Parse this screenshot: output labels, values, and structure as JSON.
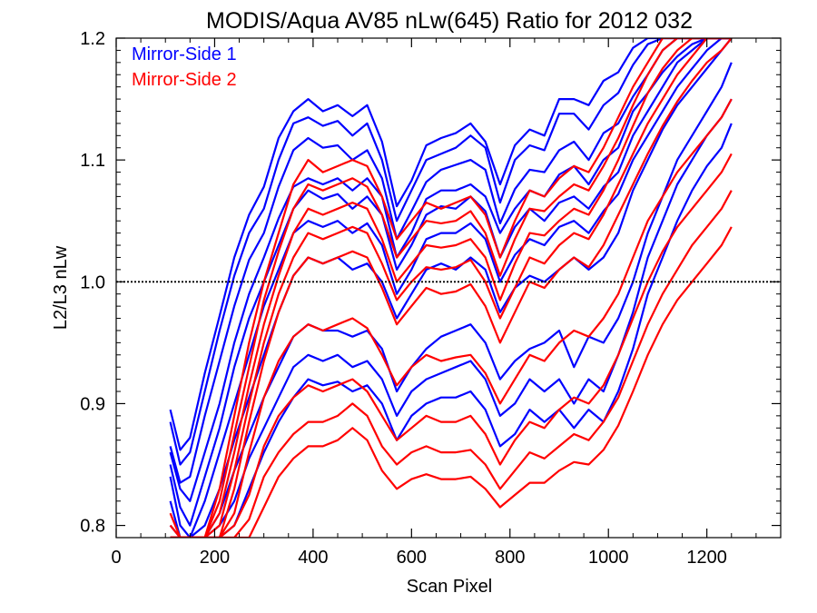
{
  "chart_data": {
    "type": "line",
    "title": "MODIS/Aqua AV85 nLw(645) Ratio for 2012 032",
    "xlabel": "Scan Pixel",
    "ylabel": "L2/L3 nLw",
    "xlim": [
      0,
      1350
    ],
    "ylim": [
      0.79,
      1.2
    ],
    "xticks": [
      0,
      200,
      400,
      600,
      800,
      1000,
      1200
    ],
    "xtick_labels": [
      "0",
      "200",
      "400",
      "600",
      "800",
      "1000",
      "1200"
    ],
    "yticks": [
      0.8,
      0.9,
      1.0,
      1.1,
      1.2
    ],
    "ytick_labels": [
      "0.8",
      "0.9",
      "1.0",
      "1.1",
      "1.2"
    ],
    "reference_line": {
      "y": 1.0,
      "style": "dotted"
    },
    "legend": [
      {
        "label": "Mirror-Side 1",
        "color": "#0000ff"
      },
      {
        "label": "Mirror-Side 2",
        "color": "#ff0000"
      }
    ],
    "legend_position": "top-left",
    "x": [
      110,
      130,
      150,
      180,
      210,
      240,
      270,
      300,
      330,
      360,
      390,
      420,
      450,
      480,
      510,
      540,
      570,
      600,
      630,
      660,
      690,
      720,
      750,
      780,
      810,
      840,
      870,
      900,
      930,
      960,
      990,
      1020,
      1050,
      1080,
      1110,
      1140,
      1170,
      1200,
      1230,
      1250
    ],
    "series": [
      {
        "group": "Mirror-Side 1",
        "color": "#0000ff",
        "values": [
          0.895,
          0.862,
          0.872,
          0.925,
          0.972,
          1.02,
          1.055,
          1.078,
          1.118,
          1.14,
          1.15,
          1.14,
          1.145,
          1.136,
          1.145,
          1.115,
          1.062,
          1.083,
          1.112,
          1.118,
          1.122,
          1.13,
          1.115,
          1.08,
          1.112,
          1.125,
          1.12,
          1.15,
          1.15,
          1.145,
          1.165,
          1.172,
          1.192,
          1.2,
          1.2,
          1.2,
          1.2,
          1.2,
          1.2,
          1.2
        ]
      },
      {
        "group": "Mirror-Side 1",
        "color": "#0000ff",
        "values": [
          0.885,
          0.85,
          0.86,
          0.91,
          0.96,
          1.005,
          1.04,
          1.06,
          1.1,
          1.13,
          1.135,
          1.128,
          1.132,
          1.12,
          1.13,
          1.1,
          1.05,
          1.075,
          1.1,
          1.105,
          1.11,
          1.12,
          1.11,
          1.065,
          1.1,
          1.112,
          1.108,
          1.138,
          1.138,
          1.125,
          1.145,
          1.155,
          1.178,
          1.195,
          1.2,
          1.2,
          1.2,
          1.2,
          1.2,
          1.2
        ]
      },
      {
        "group": "Mirror-Side 1",
        "color": "#0000ff",
        "values": [
          0.865,
          0.835,
          0.84,
          0.89,
          0.935,
          0.98,
          1.018,
          1.04,
          1.078,
          1.108,
          1.118,
          1.11,
          1.112,
          1.1,
          1.108,
          1.085,
          1.035,
          1.058,
          1.082,
          1.092,
          1.096,
          1.1,
          1.092,
          1.048,
          1.076,
          1.092,
          1.09,
          1.108,
          1.115,
          1.1,
          1.122,
          1.13,
          1.152,
          1.17,
          1.19,
          1.2,
          1.2,
          1.2,
          1.2,
          1.2
        ]
      },
      {
        "group": "Mirror-Side 1",
        "color": "#0000ff",
        "values": [
          0.86,
          0.83,
          0.82,
          0.86,
          0.9,
          0.95,
          0.99,
          1.02,
          1.052,
          1.078,
          1.085,
          1.08,
          1.085,
          1.075,
          1.085,
          1.07,
          1.02,
          1.04,
          1.068,
          1.075,
          1.075,
          1.08,
          1.07,
          1.04,
          1.06,
          1.075,
          1.07,
          1.088,
          1.095,
          1.08,
          1.1,
          1.11,
          1.14,
          1.155,
          1.172,
          1.185,
          1.195,
          1.2,
          1.2,
          1.2
        ]
      },
      {
        "group": "Mirror-Side 1",
        "color": "#0000ff",
        "values": [
          0.85,
          0.815,
          0.8,
          0.84,
          0.88,
          0.93,
          0.97,
          1.0,
          1.03,
          1.06,
          1.075,
          1.068,
          1.072,
          1.06,
          1.07,
          1.055,
          1.01,
          1.03,
          1.055,
          1.062,
          1.06,
          1.07,
          1.058,
          1.02,
          1.045,
          1.06,
          1.05,
          1.065,
          1.07,
          1.06,
          1.078,
          1.09,
          1.12,
          1.14,
          1.16,
          1.18,
          1.19,
          1.2,
          1.2,
          1.2
        ]
      },
      {
        "group": "Mirror-Side 1",
        "color": "#0000ff",
        "values": [
          0.84,
          0.8,
          0.79,
          0.82,
          0.86,
          0.9,
          0.94,
          0.98,
          1.01,
          1.04,
          1.05,
          1.045,
          1.05,
          1.04,
          1.048,
          1.03,
          0.99,
          1.01,
          1.035,
          1.04,
          1.04,
          1.048,
          1.035,
          1.0,
          1.022,
          1.035,
          1.03,
          1.045,
          1.05,
          1.04,
          1.058,
          1.072,
          1.1,
          1.12,
          1.14,
          1.16,
          1.175,
          1.19,
          1.2,
          1.2
        ]
      },
      {
        "group": "Mirror-Side 1",
        "color": "#0000ff",
        "values": [
          0.82,
          0.79,
          0.79,
          0.8,
          0.83,
          0.87,
          0.905,
          0.94,
          0.975,
          1.005,
          1.02,
          1.015,
          1.02,
          1.01,
          1.015,
          1.0,
          0.97,
          0.99,
          1.01,
          1.015,
          1.01,
          1.02,
          1.01,
          0.975,
          0.995,
          1.005,
          1.0,
          1.01,
          1.02,
          1.01,
          1.02,
          1.04,
          1.075,
          1.1,
          1.125,
          1.145,
          1.16,
          1.175,
          1.19,
          1.2
        ]
      },
      {
        "group": "Mirror-Side 1",
        "color": "#0000ff",
        "values": [
          0.8,
          0.79,
          0.79,
          0.79,
          0.81,
          0.845,
          0.875,
          0.905,
          0.93,
          0.955,
          0.965,
          0.96,
          0.96,
          0.955,
          0.96,
          0.945,
          0.91,
          0.93,
          0.945,
          0.955,
          0.96,
          0.965,
          0.95,
          0.92,
          0.935,
          0.945,
          0.95,
          0.96,
          0.93,
          0.955,
          0.95,
          0.97,
          1.0,
          1.04,
          1.07,
          1.1,
          1.12,
          1.14,
          1.16,
          1.18
        ]
      },
      {
        "group": "Mirror-Side 1",
        "color": "#0000ff",
        "values": [
          0.79,
          0.79,
          0.79,
          0.79,
          0.8,
          0.82,
          0.855,
          0.88,
          0.905,
          0.93,
          0.94,
          0.935,
          0.94,
          0.93,
          0.935,
          0.92,
          0.89,
          0.91,
          0.92,
          0.925,
          0.93,
          0.935,
          0.92,
          0.89,
          0.9,
          0.92,
          0.91,
          0.92,
          0.9,
          0.92,
          0.91,
          0.94,
          0.975,
          1.02,
          1.05,
          1.08,
          1.1,
          1.12,
          1.135,
          1.15
        ]
      },
      {
        "group": "Mirror-Side 1",
        "color": "#0000ff",
        "values": [
          0.79,
          0.79,
          0.79,
          0.79,
          0.79,
          0.8,
          0.83,
          0.86,
          0.885,
          0.905,
          0.92,
          0.915,
          0.918,
          0.91,
          0.915,
          0.9,
          0.87,
          0.89,
          0.9,
          0.905,
          0.905,
          0.91,
          0.895,
          0.865,
          0.875,
          0.895,
          0.885,
          0.895,
          0.88,
          0.895,
          0.885,
          0.91,
          0.945,
          0.99,
          1.02,
          1.05,
          1.075,
          1.095,
          1.11,
          1.13
        ]
      },
      {
        "group": "Mirror-Side 2",
        "color": "#ff0000",
        "values": [
          0.81,
          0.79,
          0.79,
          0.79,
          0.83,
          0.89,
          0.95,
          1.0,
          1.04,
          1.08,
          1.1,
          1.09,
          1.095,
          1.1,
          1.095,
          1.07,
          1.035,
          1.05,
          1.065,
          1.06,
          1.065,
          1.07,
          1.055,
          1.02,
          1.05,
          1.075,
          1.07,
          1.085,
          1.095,
          1.09,
          1.11,
          1.135,
          1.16,
          1.18,
          1.2,
          1.2,
          1.2,
          1.2,
          1.2,
          1.2
        ]
      },
      {
        "group": "Mirror-Side 2",
        "color": "#ff0000",
        "values": [
          0.8,
          0.79,
          0.79,
          0.79,
          0.82,
          0.875,
          0.93,
          0.985,
          1.025,
          1.06,
          1.08,
          1.075,
          1.08,
          1.085,
          1.078,
          1.055,
          1.02,
          1.035,
          1.05,
          1.048,
          1.05,
          1.058,
          1.04,
          1.005,
          1.035,
          1.06,
          1.058,
          1.07,
          1.08,
          1.075,
          1.095,
          1.118,
          1.145,
          1.17,
          1.19,
          1.2,
          1.2,
          1.2,
          1.2,
          1.2
        ]
      },
      {
        "group": "Mirror-Side 2",
        "color": "#ff0000",
        "values": [
          0.79,
          0.79,
          0.79,
          0.79,
          0.81,
          0.86,
          0.915,
          0.965,
          1.005,
          1.04,
          1.06,
          1.055,
          1.06,
          1.065,
          1.06,
          1.035,
          1.0,
          1.015,
          1.03,
          1.028,
          1.03,
          1.035,
          1.02,
          0.985,
          1.015,
          1.04,
          1.038,
          1.05,
          1.06,
          1.055,
          1.075,
          1.1,
          1.128,
          1.155,
          1.175,
          1.19,
          1.2,
          1.2,
          1.2,
          1.2
        ]
      },
      {
        "group": "Mirror-Side 2",
        "color": "#ff0000",
        "values": [
          0.79,
          0.79,
          0.79,
          0.79,
          0.8,
          0.845,
          0.9,
          0.95,
          0.99,
          1.02,
          1.04,
          1.035,
          1.04,
          1.045,
          1.04,
          1.015,
          0.985,
          1.0,
          1.012,
          1.01,
          1.012,
          1.018,
          1.0,
          0.97,
          0.995,
          1.02,
          1.015,
          1.03,
          1.04,
          1.035,
          1.055,
          1.08,
          1.105,
          1.13,
          1.15,
          1.17,
          1.185,
          1.2,
          1.2,
          1.2
        ]
      },
      {
        "group": "Mirror-Side 2",
        "color": "#ff0000",
        "values": [
          0.79,
          0.79,
          0.79,
          0.79,
          0.79,
          0.83,
          0.885,
          0.935,
          0.975,
          1.005,
          1.02,
          1.015,
          1.02,
          1.025,
          1.02,
          0.995,
          0.965,
          0.98,
          0.995,
          0.99,
          0.992,
          0.998,
          0.98,
          0.95,
          0.975,
          1.0,
          0.995,
          1.01,
          1.02,
          1.012,
          1.03,
          1.055,
          1.08,
          1.105,
          1.128,
          1.148,
          1.165,
          1.18,
          1.19,
          1.2
        ]
      },
      {
        "group": "Mirror-Side 2",
        "color": "#ff0000",
        "values": [
          0.79,
          0.79,
          0.79,
          0.79,
          0.79,
          0.81,
          0.86,
          0.905,
          0.935,
          0.955,
          0.965,
          0.96,
          0.965,
          0.97,
          0.962,
          0.94,
          0.915,
          0.93,
          0.94,
          0.935,
          0.938,
          0.94,
          0.925,
          0.9,
          0.92,
          0.94,
          0.935,
          0.95,
          0.96,
          0.955,
          0.97,
          0.99,
          1.02,
          1.05,
          1.07,
          1.09,
          1.105,
          1.12,
          1.135,
          1.15
        ]
      },
      {
        "group": "Mirror-Side 2",
        "color": "#ff0000",
        "values": [
          0.79,
          0.79,
          0.79,
          0.79,
          0.79,
          0.8,
          0.825,
          0.865,
          0.89,
          0.905,
          0.915,
          0.91,
          0.915,
          0.92,
          0.91,
          0.89,
          0.87,
          0.88,
          0.89,
          0.885,
          0.885,
          0.89,
          0.875,
          0.85,
          0.87,
          0.885,
          0.88,
          0.895,
          0.905,
          0.9,
          0.915,
          0.94,
          0.97,
          1.0,
          1.025,
          1.045,
          1.06,
          1.075,
          1.09,
          1.105
        ]
      },
      {
        "group": "Mirror-Side 2",
        "color": "#ff0000",
        "values": [
          0.79,
          0.79,
          0.79,
          0.79,
          0.79,
          0.79,
          0.805,
          0.84,
          0.86,
          0.875,
          0.885,
          0.885,
          0.89,
          0.9,
          0.89,
          0.865,
          0.85,
          0.86,
          0.865,
          0.86,
          0.86,
          0.862,
          0.85,
          0.83,
          0.845,
          0.86,
          0.855,
          0.865,
          0.875,
          0.87,
          0.885,
          0.905,
          0.935,
          0.965,
          0.99,
          1.01,
          1.03,
          1.045,
          1.06,
          1.075
        ]
      },
      {
        "group": "Mirror-Side 2",
        "color": "#ff0000",
        "values": [
          0.79,
          0.79,
          0.79,
          0.79,
          0.79,
          0.79,
          0.79,
          0.815,
          0.84,
          0.855,
          0.865,
          0.865,
          0.87,
          0.88,
          0.87,
          0.845,
          0.83,
          0.838,
          0.842,
          0.838,
          0.838,
          0.84,
          0.83,
          0.815,
          0.825,
          0.835,
          0.835,
          0.845,
          0.852,
          0.85,
          0.862,
          0.882,
          0.91,
          0.94,
          0.965,
          0.985,
          1.0,
          1.015,
          1.03,
          1.045
        ]
      }
    ]
  }
}
